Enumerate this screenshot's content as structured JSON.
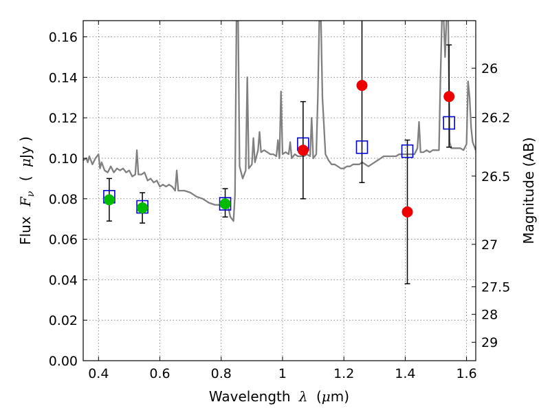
{
  "chart_data": {
    "type": "scatter",
    "title": "",
    "xlabel_text": "Wavelength",
    "xlabel_symbol": "λ",
    "xlabel_unit_open": "(",
    "xlabel_unit_mu": "μ",
    "xlabel_unit_rest": "m)",
    "ylabel_text": "Flux",
    "ylabel_symbol": "F",
    "ylabel_sub": "ν",
    "ylabel_unit_open": "(",
    "ylabel_unit_mu": "μ",
    "ylabel_unit_rest": "Jy )",
    "ylabel_right": "Magnitude (AB)",
    "xlim": [
      0.35,
      1.63
    ],
    "ylim": [
      0.0,
      0.168
    ],
    "grid": true,
    "x_ticks": [
      {
        "value": 0.4,
        "label": "0.4"
      },
      {
        "value": 0.6,
        "label": "0.6"
      },
      {
        "value": 0.8,
        "label": "0.8"
      },
      {
        "value": 1.0,
        "label": "1"
      },
      {
        "value": 1.2,
        "label": "1.2"
      },
      {
        "value": 1.4,
        "label": "1.4"
      },
      {
        "value": 1.6,
        "label": "1.6"
      }
    ],
    "y_ticks": [
      {
        "value": 0.0,
        "label": "0.00"
      },
      {
        "value": 0.02,
        "label": "0.02"
      },
      {
        "value": 0.04,
        "label": "0.04"
      },
      {
        "value": 0.06,
        "label": "0.06"
      },
      {
        "value": 0.08,
        "label": "0.08"
      },
      {
        "value": 0.1,
        "label": "0.10"
      },
      {
        "value": 0.12,
        "label": "0.12"
      },
      {
        "value": 0.14,
        "label": "0.14"
      },
      {
        "value": 0.16,
        "label": "0.16"
      }
    ],
    "right_ticks": [
      {
        "flux": 0.1445,
        "label": "26"
      },
      {
        "flux": 0.1202,
        "label": "26.2"
      },
      {
        "flux": 0.0912,
        "label": "26.5"
      },
      {
        "flux": 0.0575,
        "label": "27"
      },
      {
        "flux": 0.0365,
        "label": "27.5"
      },
      {
        "flux": 0.0229,
        "label": "28"
      },
      {
        "flux": 0.0091,
        "label": "29"
      }
    ],
    "colors": {
      "model": "#808080",
      "green": "#00bb00",
      "red": "#ee0000",
      "blue": "#0000cc",
      "error": "#000000"
    },
    "model_spectrum": [
      [
        0.35,
        0.099
      ],
      [
        0.36,
        0.1
      ],
      [
        0.365,
        0.098
      ],
      [
        0.37,
        0.101
      ],
      [
        0.38,
        0.097
      ],
      [
        0.39,
        0.1
      ],
      [
        0.4,
        0.102
      ],
      [
        0.405,
        0.095
      ],
      [
        0.41,
        0.098
      ],
      [
        0.42,
        0.094
      ],
      [
        0.43,
        0.093
      ],
      [
        0.44,
        0.096
      ],
      [
        0.45,
        0.093
      ],
      [
        0.46,
        0.095
      ],
      [
        0.47,
        0.094
      ],
      [
        0.48,
        0.095
      ],
      [
        0.49,
        0.093
      ],
      [
        0.5,
        0.094
      ],
      [
        0.51,
        0.091
      ],
      [
        0.52,
        0.092
      ],
      [
        0.525,
        0.104
      ],
      [
        0.53,
        0.092
      ],
      [
        0.54,
        0.092
      ],
      [
        0.55,
        0.093
      ],
      [
        0.56,
        0.089
      ],
      [
        0.57,
        0.09
      ],
      [
        0.58,
        0.088
      ],
      [
        0.59,
        0.089
      ],
      [
        0.6,
        0.086
      ],
      [
        0.61,
        0.087
      ],
      [
        0.62,
        0.086
      ],
      [
        0.63,
        0.087
      ],
      [
        0.64,
        0.086
      ],
      [
        0.65,
        0.084
      ],
      [
        0.655,
        0.094
      ],
      [
        0.66,
        0.084
      ],
      [
        0.68,
        0.084
      ],
      [
        0.7,
        0.083
      ],
      [
        0.72,
        0.081
      ],
      [
        0.74,
        0.08
      ],
      [
        0.76,
        0.078
      ],
      [
        0.78,
        0.077
      ],
      [
        0.8,
        0.077
      ],
      [
        0.81,
        0.078
      ],
      [
        0.82,
        0.078
      ],
      [
        0.83,
        0.071
      ],
      [
        0.84,
        0.069
      ],
      [
        0.845,
        0.082
      ],
      [
        0.85,
        0.17
      ],
      [
        0.855,
        0.17
      ],
      [
        0.86,
        0.096
      ],
      [
        0.87,
        0.09
      ],
      [
        0.88,
        0.094
      ],
      [
        0.885,
        0.14
      ],
      [
        0.89,
        0.095
      ],
      [
        0.9,
        0.097
      ],
      [
        0.905,
        0.11
      ],
      [
        0.91,
        0.098
      ],
      [
        0.92,
        0.104
      ],
      [
        0.925,
        0.113
      ],
      [
        0.93,
        0.103
      ],
      [
        0.94,
        0.104
      ],
      [
        0.95,
        0.103
      ],
      [
        0.96,
        0.102
      ],
      [
        0.97,
        0.102
      ],
      [
        0.98,
        0.101
      ],
      [
        0.985,
        0.109
      ],
      [
        0.99,
        0.1
      ],
      [
        0.995,
        0.133
      ],
      [
        1.0,
        0.102
      ],
      [
        1.01,
        0.103
      ],
      [
        1.02,
        0.102
      ],
      [
        1.025,
        0.108
      ],
      [
        1.03,
        0.1
      ],
      [
        1.04,
        0.102
      ],
      [
        1.05,
        0.101
      ],
      [
        1.06,
        0.101
      ],
      [
        1.07,
        0.101
      ],
      [
        1.08,
        0.102
      ],
      [
        1.09,
        0.101
      ],
      [
        1.095,
        0.12
      ],
      [
        1.1,
        0.1
      ],
      [
        1.11,
        0.102
      ],
      [
        1.115,
        0.13
      ],
      [
        1.12,
        0.17
      ],
      [
        1.125,
        0.17
      ],
      [
        1.13,
        0.13
      ],
      [
        1.14,
        0.102
      ],
      [
        1.15,
        0.099
      ],
      [
        1.16,
        0.097
      ],
      [
        1.17,
        0.097
      ],
      [
        1.18,
        0.096
      ],
      [
        1.19,
        0.095
      ],
      [
        1.2,
        0.095
      ],
      [
        1.21,
        0.096
      ],
      [
        1.22,
        0.096
      ],
      [
        1.23,
        0.097
      ],
      [
        1.24,
        0.097
      ],
      [
        1.25,
        0.097
      ],
      [
        1.26,
        0.098
      ],
      [
        1.27,
        0.097
      ],
      [
        1.28,
        0.096
      ],
      [
        1.29,
        0.097
      ],
      [
        1.3,
        0.098
      ],
      [
        1.31,
        0.099
      ],
      [
        1.32,
        0.1
      ],
      [
        1.33,
        0.101
      ],
      [
        1.34,
        0.101
      ],
      [
        1.35,
        0.101
      ],
      [
        1.36,
        0.101
      ],
      [
        1.37,
        0.101
      ],
      [
        1.38,
        0.102
      ],
      [
        1.39,
        0.102
      ],
      [
        1.4,
        0.102
      ],
      [
        1.41,
        0.102
      ],
      [
        1.42,
        0.102
      ],
      [
        1.43,
        0.102
      ],
      [
        1.44,
        0.105
      ],
      [
        1.445,
        0.118
      ],
      [
        1.45,
        0.103
      ],
      [
        1.46,
        0.103
      ],
      [
        1.47,
        0.104
      ],
      [
        1.48,
        0.103
      ],
      [
        1.49,
        0.104
      ],
      [
        1.5,
        0.104
      ],
      [
        1.51,
        0.104
      ],
      [
        1.515,
        0.14
      ],
      [
        1.52,
        0.17
      ],
      [
        1.525,
        0.17
      ],
      [
        1.53,
        0.15
      ],
      [
        1.535,
        0.17
      ],
      [
        1.54,
        0.17
      ],
      [
        1.545,
        0.108
      ],
      [
        1.55,
        0.105
      ],
      [
        1.56,
        0.105
      ],
      [
        1.57,
        0.105
      ],
      [
        1.58,
        0.105
      ],
      [
        1.59,
        0.104
      ],
      [
        1.6,
        0.107
      ],
      [
        1.605,
        0.138
      ],
      [
        1.61,
        0.13
      ],
      [
        1.615,
        0.115
      ],
      [
        1.62,
        0.108
      ],
      [
        1.63,
        0.104
      ]
    ],
    "series": [
      {
        "name": "observed-green",
        "marker": "circle",
        "color_key": "green",
        "points": [
          {
            "x": 0.435,
            "y": 0.0795,
            "err_low": 0.069,
            "err_high": 0.09
          },
          {
            "x": 0.543,
            "y": 0.0755,
            "err_low": 0.068,
            "err_high": 0.083
          },
          {
            "x": 0.813,
            "y": 0.0775,
            "err_low": 0.071,
            "err_high": 0.085
          }
        ]
      },
      {
        "name": "observed-red",
        "marker": "circle",
        "color_key": "red",
        "points": [
          {
            "x": 1.067,
            "y": 0.104,
            "err_low": 0.08,
            "err_high": 0.128
          },
          {
            "x": 1.259,
            "y": 0.136,
            "err_low": 0.088,
            "err_high": 0.17
          },
          {
            "x": 1.407,
            "y": 0.0735,
            "err_low": 0.038,
            "err_high": 0.109
          },
          {
            "x": 1.543,
            "y": 0.1305,
            "err_low": 0.1055,
            "err_high": 0.156
          }
        ]
      },
      {
        "name": "model-photometry",
        "marker": "square",
        "color_key": "blue",
        "points": [
          {
            "x": 0.435,
            "y": 0.081
          },
          {
            "x": 0.543,
            "y": 0.076
          },
          {
            "x": 0.813,
            "y": 0.0775
          },
          {
            "x": 1.067,
            "y": 0.107
          },
          {
            "x": 1.259,
            "y": 0.1055
          },
          {
            "x": 1.407,
            "y": 0.1035
          },
          {
            "x": 1.543,
            "y": 0.1175
          }
        ]
      }
    ]
  }
}
